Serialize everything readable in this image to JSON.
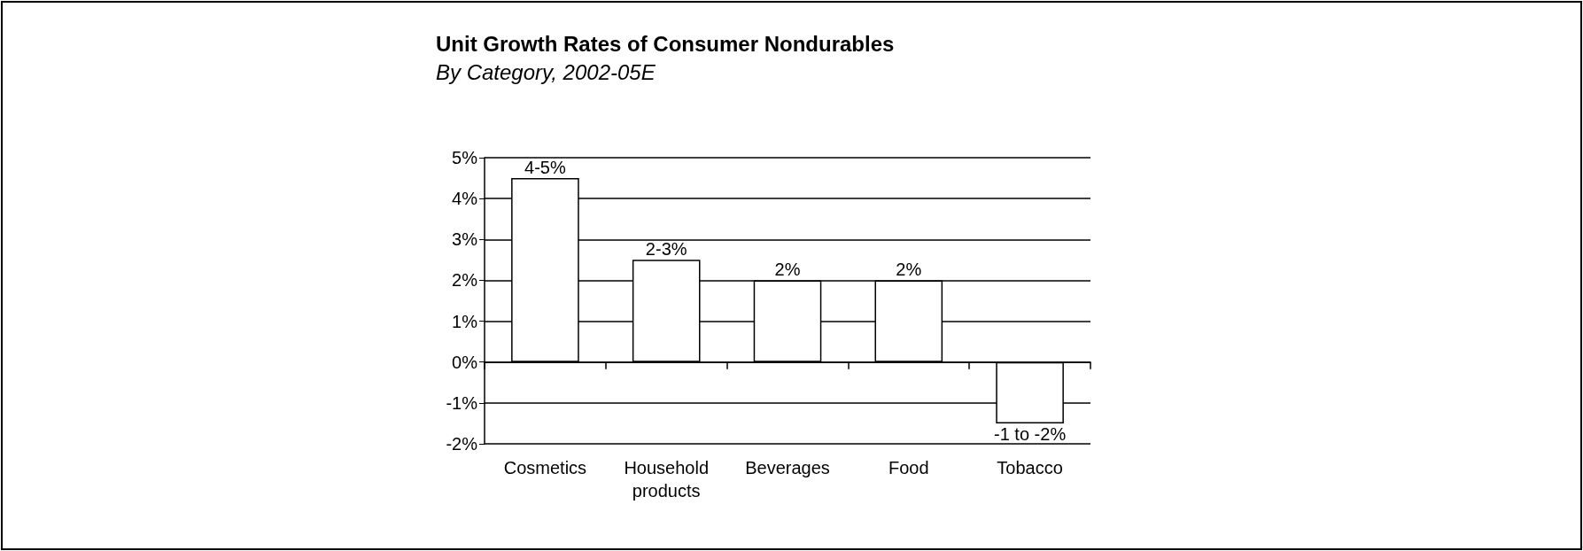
{
  "chart_data": {
    "type": "bar",
    "title": "Unit Growth Rates of Consumer Nondurables",
    "subtitle": "By Category, 2002-05E",
    "categories": [
      "Cosmetics",
      "Household\nproducts",
      "Beverages",
      "Food",
      "Tobacco"
    ],
    "values": [
      4.5,
      2.5,
      2,
      2,
      -1.5
    ],
    "value_labels": [
      "4-5%",
      "2-3%",
      "2%",
      "2%",
      "-1 to -2%"
    ],
    "color": "#ffffff",
    "ylim": [
      -2,
      5
    ],
    "yticks": [
      {
        "value": -2,
        "label": "-2%"
      },
      {
        "value": -1,
        "label": "-1%"
      },
      {
        "value": 0,
        "label": "0%"
      },
      {
        "value": 1,
        "label": "1%"
      },
      {
        "value": 2,
        "label": "2%"
      },
      {
        "value": 3,
        "label": "3%"
      },
      {
        "value": 4,
        "label": "4%"
      },
      {
        "value": 5,
        "label": "5%"
      }
    ],
    "grid": "y"
  }
}
